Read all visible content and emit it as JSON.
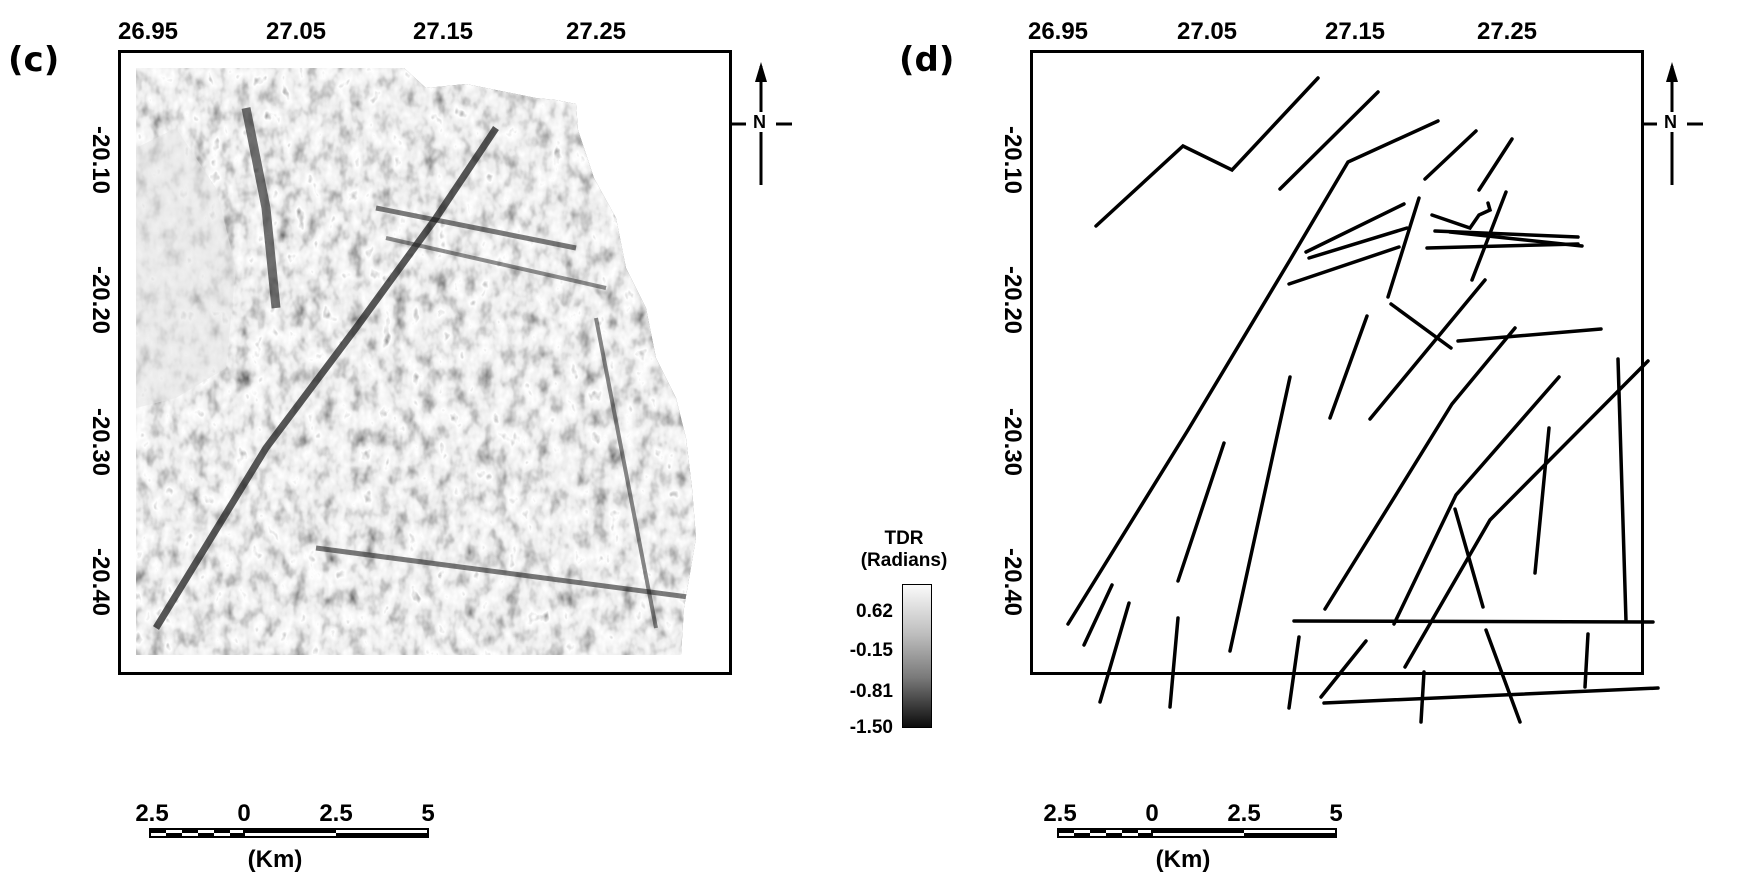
{
  "panels": [
    {
      "id": "c",
      "label": "(c)",
      "lon_ticks": [
        "26.95",
        "27.05",
        "27.15",
        "27.25"
      ],
      "lat_ticks": [
        "-20.10",
        "-20.20",
        "-20.30",
        "-20.40"
      ]
    },
    {
      "id": "d",
      "label": "(d)",
      "lon_ticks": [
        "26.95",
        "27.05",
        "27.15",
        "27.25"
      ],
      "lat_ticks": [
        "-20.10",
        "-20.20",
        "-20.30",
        "-20.40"
      ]
    }
  ],
  "scale_bar": {
    "labels": [
      "2.5",
      "0",
      "2.5",
      "5"
    ],
    "unit": "(Km)"
  },
  "legend": {
    "title_line1": "TDR",
    "title_line2": "(Radians)",
    "values": [
      "0.62",
      "-0.15",
      "-0.81",
      "-1.50"
    ],
    "colors": [
      "#fafafa",
      "#0c0c0c"
    ]
  },
  "north_arrow": {
    "label": "N"
  },
  "colors": {
    "lineament": "#000000",
    "frame": "#000000"
  }
}
